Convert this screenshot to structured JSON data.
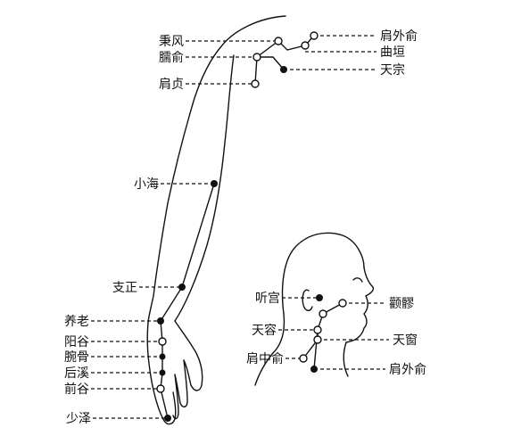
{
  "points": {
    "bingfeng": "秉风",
    "naoshu": "臑俞",
    "jianzhen": "肩贞",
    "xiaohai": "小海",
    "zhizheng": "支正",
    "yanglao": "养老",
    "yanggu": "阳谷",
    "wangu": "腕骨",
    "houxi": "后溪",
    "qiangu": "前谷",
    "shaoze": "少泽",
    "jianwaishu": "肩外俞",
    "quyuan": "曲垣",
    "tianzong": "天宗",
    "tinggong": "听宫",
    "quanliao": "颧髎",
    "tianrong": "天容",
    "tianchuang": "天窗",
    "jianzhongshu": "肩中俞",
    "jianwaishu_head": "肩外俞"
  },
  "icons": {
    "open_point": "open-circle",
    "solid_point": "solid-dot"
  }
}
